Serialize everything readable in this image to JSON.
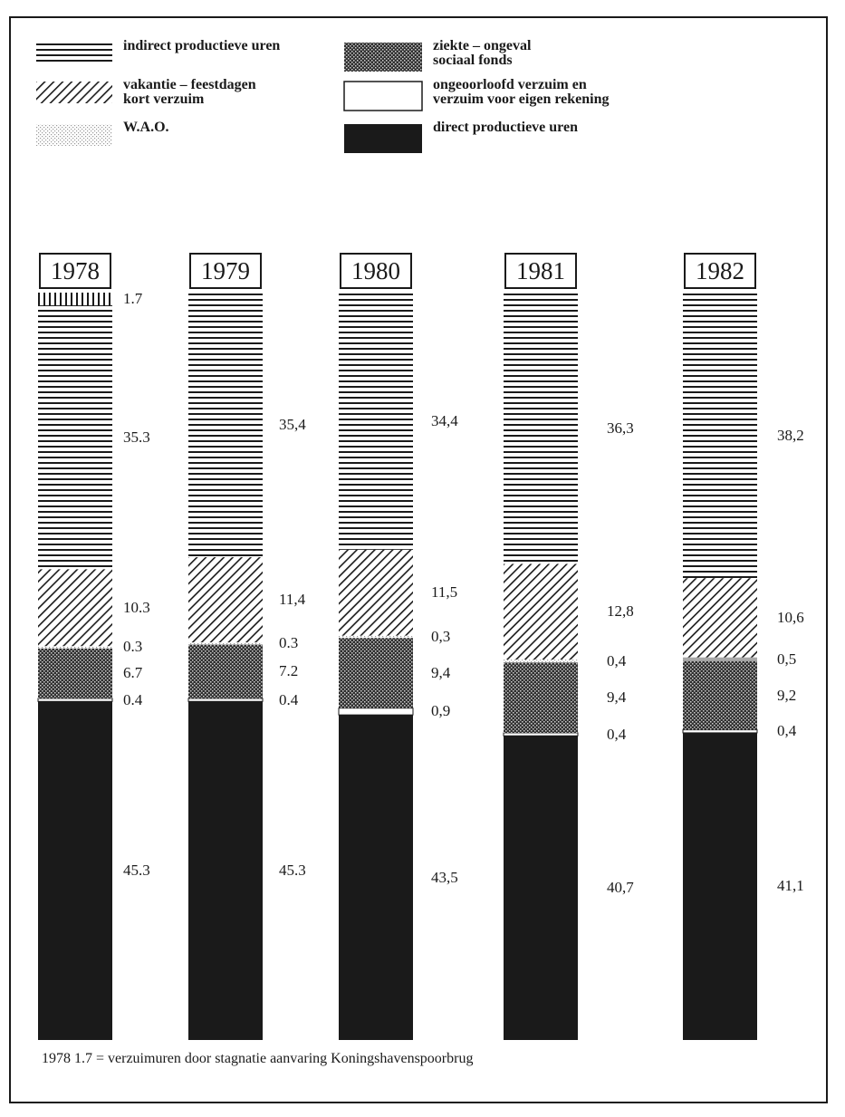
{
  "legend": [
    {
      "key": "indirect",
      "label": "indirect productieve uren",
      "pattern": "hlines"
    },
    {
      "key": "ziekte",
      "label": "ziekte – ongeval\nsociaal fonds",
      "pattern": "dots"
    },
    {
      "key": "vakantie",
      "label": "vakantie – feestdagen\nkort verzuim",
      "pattern": "diag"
    },
    {
      "key": "ongeoorloofd",
      "label": "ongeoorloofd verzuim en\nverzuim voor eigen rekening",
      "pattern": "white"
    },
    {
      "key": "wao",
      "label": "W.A.O.",
      "pattern": "stipple"
    },
    {
      "key": "direct",
      "label": "direct productieve uren",
      "pattern": "black"
    }
  ],
  "footnote": "1978  1.7 = verzuimuren door stagnatie aanvaring Koningshavenspoorbrug",
  "colors": {
    "ink": "#1a1a1a",
    "paper": "#ffffff",
    "wao_1982": "#a8a8a8"
  },
  "chart_data": {
    "type": "bar",
    "stacked": true,
    "categories": [
      "1978",
      "1979",
      "1980",
      "1981",
      "1982"
    ],
    "series": [
      {
        "name": "direct productieve uren",
        "values": [
          45.3,
          45.3,
          43.5,
          40.7,
          41.1
        ],
        "labels": [
          "45.3",
          "45.3",
          "43,5",
          "40,7",
          "41,1"
        ]
      },
      {
        "name": "ongeoorloofd verzuim en verzuim voor eigen rekening",
        "values": [
          0.4,
          0.4,
          0.9,
          0.4,
          0.4
        ],
        "labels": [
          "0.4",
          "0.4",
          "0,9",
          "0,4",
          "0,4"
        ]
      },
      {
        "name": "ziekte – ongeval sociaal fonds",
        "values": [
          6.7,
          7.2,
          9.4,
          9.4,
          9.2
        ],
        "labels": [
          "6.7",
          "7.2",
          "9,4",
          "9,4",
          "9,2"
        ]
      },
      {
        "name": "W.A.O.",
        "values": [
          0.3,
          0.3,
          0.3,
          0.4,
          0.5
        ],
        "labels": [
          "0.3",
          "0.3",
          "0,3",
          "0,4",
          "0,5"
        ]
      },
      {
        "name": "vakantie – feestdagen kort verzuim",
        "values": [
          10.3,
          11.4,
          11.5,
          12.8,
          10.6
        ],
        "labels": [
          "10.3",
          "11,4",
          "11,5",
          "12,8",
          "10,6"
        ]
      },
      {
        "name": "indirect productieve uren",
        "values": [
          35.3,
          35.4,
          34.4,
          36.3,
          38.2
        ],
        "labels": [
          "35.3",
          "35,4",
          "34,4",
          "36,3",
          "38,2"
        ]
      },
      {
        "name": "1.7",
        "values": [
          1.7,
          null,
          null,
          null,
          null
        ],
        "labels": [
          "1.7",
          "",
          "",
          "",
          ""
        ]
      }
    ]
  }
}
